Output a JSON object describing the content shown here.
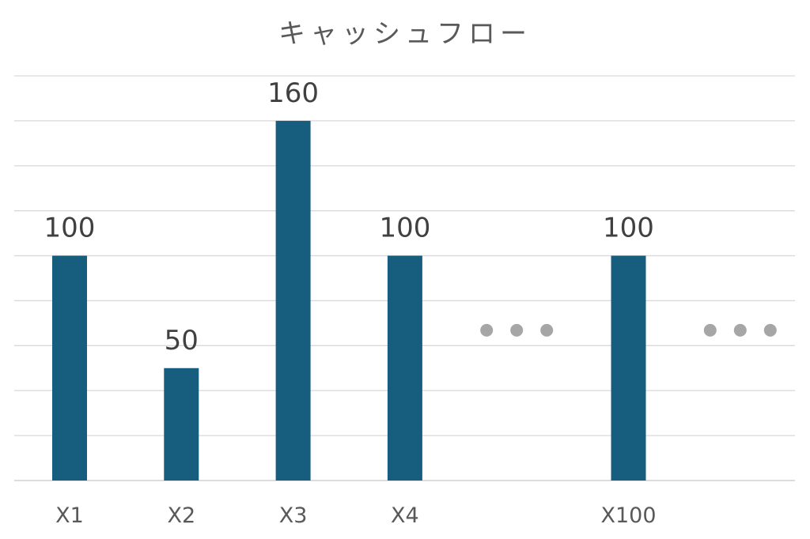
{
  "chart_data": {
    "type": "bar",
    "title": "キャッシュフロー",
    "xlabel": "",
    "ylabel": "",
    "categories": [
      "X1",
      "X2",
      "X3",
      "X4",
      "",
      "X100",
      ""
    ],
    "values": [
      100,
      50,
      160,
      100,
      null,
      100,
      null
    ],
    "data_labels": [
      "100",
      "50",
      "160",
      "100",
      "",
      "100",
      ""
    ],
    "ellipsis_categories": [
      4,
      6
    ],
    "ylim": [
      0,
      180
    ],
    "ytick_step": 20,
    "y_axis_labels_shown": false,
    "grid": true,
    "legend": "none",
    "colors": {
      "bar": "#175e7e",
      "ellipsis_dot": "#a6a6a6",
      "grid": "#d9d9d9"
    }
  }
}
